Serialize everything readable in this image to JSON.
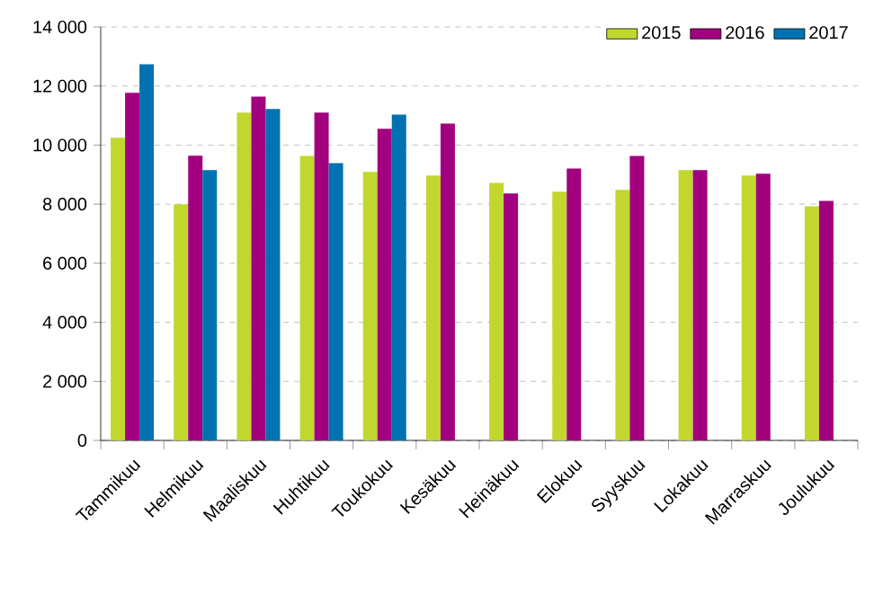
{
  "chart_data": {
    "type": "bar",
    "categories": [
      "Tammikuu",
      "Helmikuu",
      "Maaliskuu",
      "Huhtikuu",
      "Toukokuu",
      "Kesäkuu",
      "Heinäkuu",
      "Elokuu",
      "Syyskuu",
      "Lokakuu",
      "Marraskuu",
      "Joulukuu"
    ],
    "series": [
      {
        "name": "2015",
        "color": "#c1d72e",
        "values": [
          10250,
          8000,
          11100,
          9630,
          9090,
          8970,
          8720,
          8420,
          8480,
          9150,
          8970,
          7930
        ]
      },
      {
        "name": "2016",
        "color": "#a2007e",
        "values": [
          11770,
          9640,
          11640,
          11100,
          10550,
          10730,
          8360,
          9210,
          9630,
          9150,
          9030,
          8110
        ]
      },
      {
        "name": "2017",
        "color": "#0072b1",
        "values": [
          12740,
          9150,
          11220,
          9390,
          11030,
          null,
          null,
          null,
          null,
          null,
          null,
          null
        ]
      }
    ],
    "ylim": [
      0,
      14000
    ],
    "yticks": [
      0,
      {
        "value": 2000,
        "label": "2 000"
      },
      {
        "value": 4000,
        "label": "4 000"
      },
      {
        "value": 6000,
        "label": "6 000"
      },
      {
        "value": 8000,
        "label": "8 000"
      },
      {
        "value": 10000,
        "label": "10 000"
      },
      {
        "value": 12000,
        "label": "12 000"
      },
      {
        "value": 14000,
        "label": "14 000"
      }
    ],
    "grid": "y",
    "legend": "top right"
  }
}
